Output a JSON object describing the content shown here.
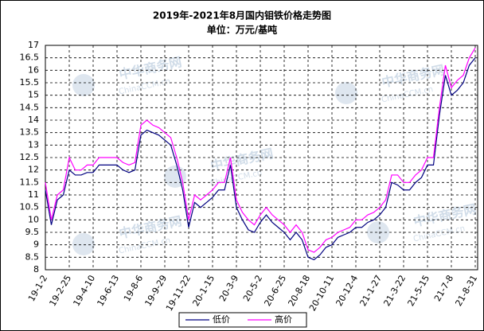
{
  "chart_data": {
    "type": "line",
    "title": "2019年-2021年8月国内钼铁价格走势图",
    "subtitle": "单位：万元/基吨",
    "watermark": "中华商务网",
    "watermark_en": "ChinaCCM.cn",
    "categories": [
      "19-1-2",
      null,
      null,
      null,
      "19-2-25",
      null,
      null,
      null,
      "19-4-10",
      null,
      null,
      null,
      "19-6-13",
      null,
      null,
      null,
      "19-8-6",
      null,
      null,
      null,
      "19-9-29",
      null,
      null,
      null,
      "19-11-22",
      null,
      null,
      null,
      "20-1-15",
      null,
      null,
      null,
      "20-3-9",
      null,
      null,
      null,
      "20-5-2",
      null,
      null,
      null,
      "20-6-25",
      null,
      null,
      null,
      "20-8-18",
      null,
      null,
      null,
      "20-10-11",
      null,
      null,
      null,
      "20-12-4",
      null,
      null,
      null,
      "21-1-27",
      null,
      null,
      null,
      "21-3-22",
      null,
      null,
      null,
      "21-5-15",
      null,
      null,
      null,
      "21-7-8",
      null,
      null,
      null,
      "21-8-31"
    ],
    "series": [
      {
        "name": "低价",
        "color": "#000080",
        "values": [
          11.2,
          9.8,
          10.8,
          11.0,
          12.0,
          11.8,
          11.8,
          11.9,
          11.9,
          12.2,
          12.2,
          12.2,
          12.2,
          12.0,
          11.9,
          12.0,
          13.4,
          13.6,
          13.5,
          13.4,
          13.2,
          13.0,
          12.2,
          11.2,
          9.7,
          10.7,
          10.5,
          10.7,
          10.9,
          11.2,
          11.2,
          12.2,
          10.5,
          10.0,
          9.6,
          9.5,
          9.9,
          10.2,
          9.9,
          9.7,
          9.5,
          9.2,
          9.5,
          9.2,
          8.5,
          8.4,
          8.6,
          8.9,
          9.0,
          9.3,
          9.4,
          9.5,
          9.7,
          9.7,
          9.9,
          10.0,
          10.2,
          10.5,
          11.5,
          11.4,
          11.2,
          11.2,
          11.5,
          11.7,
          12.2,
          12.2,
          14.2,
          15.8,
          15.0,
          15.2,
          15.5,
          16.2,
          16.5
        ]
      },
      {
        "name": "高价",
        "color": "#ff00ff",
        "values": [
          11.5,
          10.0,
          11.0,
          11.2,
          12.5,
          12.0,
          12.0,
          12.2,
          12.2,
          12.5,
          12.5,
          12.5,
          12.5,
          12.3,
          12.2,
          12.3,
          13.8,
          14.0,
          13.8,
          13.7,
          13.5,
          13.3,
          12.5,
          11.5,
          10.0,
          11.0,
          10.8,
          11.0,
          11.2,
          11.5,
          11.5,
          12.5,
          10.8,
          10.3,
          10.0,
          9.8,
          10.2,
          10.5,
          10.2,
          10.0,
          9.8,
          9.5,
          9.8,
          9.5,
          8.8,
          8.7,
          8.9,
          9.2,
          9.3,
          9.5,
          9.6,
          9.7,
          10.0,
          10.0,
          10.2,
          10.3,
          10.5,
          10.8,
          11.8,
          11.8,
          11.5,
          11.5,
          11.8,
          12.0,
          12.5,
          12.5,
          14.5,
          16.2,
          15.3,
          15.6,
          15.8,
          16.5,
          16.9
        ]
      }
    ],
    "ylim": [
      8,
      17
    ],
    "yticks": [
      8,
      8.5,
      9,
      9.5,
      10,
      10.5,
      11,
      11.5,
      12,
      12.5,
      13,
      13.5,
      14,
      14.5,
      15,
      15.5,
      16,
      16.5,
      17
    ],
    "grid": true,
    "legend": "bottom"
  }
}
